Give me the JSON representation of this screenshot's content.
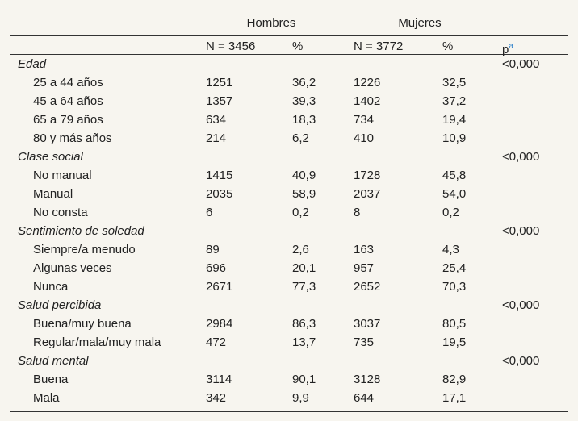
{
  "table": {
    "groups": [
      "Hombres",
      "Mujeres"
    ],
    "columns": [
      "N = 3456",
      "%",
      "N = 3772",
      "%",
      "p"
    ],
    "p_note": "a",
    "sections": [
      {
        "label": "Edad",
        "p": "<0,000",
        "rows": [
          [
            "25 a 44 años",
            "1251",
            "36,2",
            "1226",
            "32,5"
          ],
          [
            "45 a 64 años",
            "1357",
            "39,3",
            "1402",
            "37,2"
          ],
          [
            "65 a 79 años",
            "634",
            "18,3",
            "734",
            "19,4"
          ],
          [
            "80 y más años",
            "214",
            "6,2",
            "410",
            "10,9"
          ]
        ]
      },
      {
        "label": "Clase social",
        "p": "<0,000",
        "rows": [
          [
            "No manual",
            "1415",
            "40,9",
            "1728",
            "45,8"
          ],
          [
            "Manual",
            "2035",
            "58,9",
            "2037",
            "54,0"
          ],
          [
            "No consta",
            "6",
            "0,2",
            "8",
            "0,2"
          ]
        ]
      },
      {
        "label": "Sentimiento de soledad",
        "p": "<0,000",
        "rows": [
          [
            "Siempre/a menudo",
            "89",
            "2,6",
            "163",
            "4,3"
          ],
          [
            "Algunas veces",
            "696",
            "20,1",
            "957",
            "25,4"
          ],
          [
            "Nunca",
            "2671",
            "77,3",
            "2652",
            "70,3"
          ]
        ]
      },
      {
        "label": "Salud percibida",
        "p": "<0,000",
        "rows": [
          [
            "Buena/muy buena",
            "2984",
            "86,3",
            "3037",
            "80,5"
          ],
          [
            "Regular/mala/muy mala",
            "472",
            "13,7",
            "735",
            "19,5"
          ]
        ]
      },
      {
        "label": "Salud mental",
        "p": "<0,000",
        "rows": [
          [
            "Buena",
            "3114",
            "90,1",
            "3128",
            "82,9"
          ],
          [
            "Mala",
            "342",
            "9,9",
            "644",
            "17,1"
          ]
        ]
      }
    ]
  }
}
